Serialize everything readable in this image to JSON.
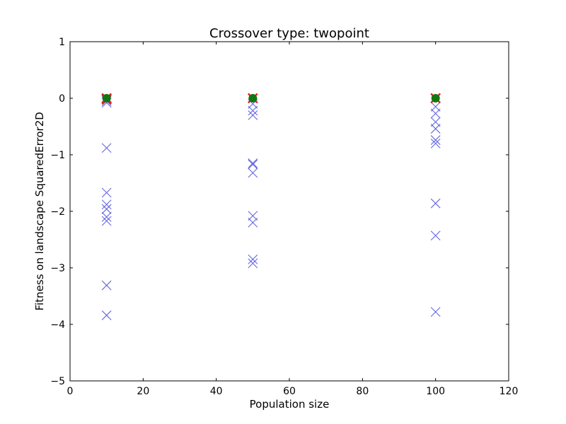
{
  "chart_data": {
    "type": "scatter",
    "title": "Crossover type: twopoint",
    "xlabel": "Population size",
    "ylabel": "Fitness on landscape SquaredError2D",
    "xlim": [
      0,
      120
    ],
    "ylim": [
      -5,
      1
    ],
    "xticks": [
      "0",
      "20",
      "40",
      "60",
      "80",
      "100",
      "120"
    ],
    "yticks": [
      "−5",
      "−4",
      "−3",
      "−2",
      "−1",
      "0",
      "1"
    ],
    "grid": false,
    "series": [
      {
        "marker": "x",
        "color": "#5555dd",
        "points": [
          [
            10,
            -0.05
          ],
          [
            10,
            -0.08
          ],
          [
            10,
            -0.88
          ],
          [
            10,
            -1.67
          ],
          [
            10,
            -1.88
          ],
          [
            10,
            -1.96
          ],
          [
            10,
            -2.1
          ],
          [
            10,
            -2.17
          ],
          [
            10,
            -3.31
          ],
          [
            10,
            -3.84
          ],
          [
            50,
            -0.1
          ],
          [
            50,
            -0.22
          ],
          [
            50,
            -0.3
          ],
          [
            50,
            -1.15
          ],
          [
            50,
            -1.17
          ],
          [
            50,
            -1.32
          ],
          [
            50,
            -2.08
          ],
          [
            50,
            -2.2
          ],
          [
            50,
            -2.85
          ],
          [
            50,
            -2.92
          ],
          [
            100,
            -0.15
          ],
          [
            100,
            -0.27
          ],
          [
            100,
            -0.42
          ],
          [
            100,
            -0.54
          ],
          [
            100,
            -0.74
          ],
          [
            100,
            -0.8
          ],
          [
            100,
            -1.86
          ],
          [
            100,
            -2.43
          ],
          [
            100,
            -3.78
          ]
        ]
      },
      {
        "marker": "x",
        "color": "#dd2222",
        "points": [
          [
            10,
            0
          ],
          [
            10,
            -0.02
          ],
          [
            50,
            0
          ],
          [
            100,
            0
          ]
        ]
      },
      {
        "marker": "o",
        "color": "#117711",
        "points": [
          [
            10,
            0
          ],
          [
            50,
            0
          ],
          [
            100,
            0
          ]
        ]
      }
    ]
  }
}
